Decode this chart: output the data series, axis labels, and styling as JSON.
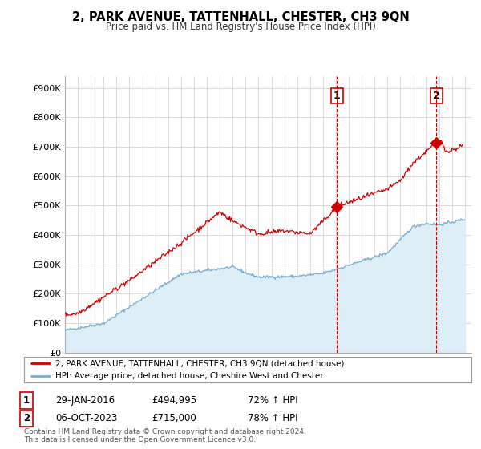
{
  "title": "2, PARK AVENUE, TATTENHALL, CHESTER, CH3 9QN",
  "subtitle": "Price paid vs. HM Land Registry's House Price Index (HPI)",
  "ylabel_ticks": [
    "£0",
    "£100K",
    "£200K",
    "£300K",
    "£400K",
    "£500K",
    "£600K",
    "£700K",
    "£800K",
    "£900K"
  ],
  "ylim": [
    0,
    940000
  ],
  "xlim_start": 1995.0,
  "xlim_end": 2026.5,
  "red_line_color": "#cc0000",
  "blue_line_color": "#7aadcf",
  "blue_fill_color": "#ddeef7",
  "marker1_x": 2016.08,
  "marker1_y": 494995,
  "marker2_x": 2023.77,
  "marker2_y": 715000,
  "vline1_x": 2016.08,
  "vline2_x": 2023.77,
  "legend_label_red": "2, PARK AVENUE, TATTENHALL, CHESTER, CH3 9QN (detached house)",
  "legend_label_blue": "HPI: Average price, detached house, Cheshire West and Chester",
  "annotation1_num": "1",
  "annotation1_date": "29-JAN-2016",
  "annotation1_price": "£494,995",
  "annotation1_hpi": "72% ↑ HPI",
  "annotation2_num": "2",
  "annotation2_date": "06-OCT-2023",
  "annotation2_price": "£715,000",
  "annotation2_hpi": "78% ↑ HPI",
  "footer": "Contains HM Land Registry data © Crown copyright and database right 2024.\nThis data is licensed under the Open Government Licence v3.0.",
  "background_color": "#ffffff",
  "grid_color": "#cccccc"
}
